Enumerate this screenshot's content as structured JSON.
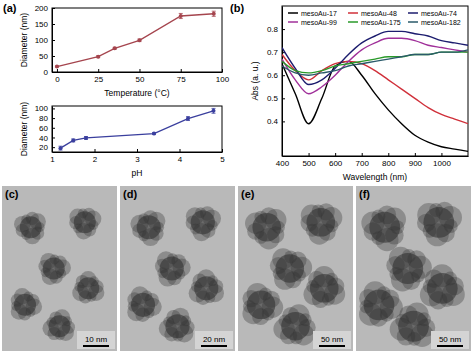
{
  "chart_data": [
    {
      "type": "line",
      "annotations": [
        "(a)"
      ],
      "x_label": "Temperature (°C)",
      "y_label": "Diameter (nm)",
      "x": [
        0,
        25,
        35,
        50,
        75,
        95
      ],
      "values": [
        17,
        48,
        74,
        99,
        175,
        182
      ],
      "errors": [
        2,
        3,
        3,
        4,
        8,
        8
      ],
      "xlim": [
        -3,
        100
      ],
      "ylim": [
        0,
        200
      ],
      "xticks": [
        0,
        25,
        50,
        75,
        100
      ],
      "yticks": [
        0,
        50,
        100,
        150,
        200
      ],
      "color": "#a5454e",
      "marker": "circle"
    },
    {
      "type": "line",
      "x_label": "pH",
      "y_label": "Diameter (nm)",
      "x": [
        1.2,
        1.5,
        1.8,
        3.4,
        4.2,
        4.8
      ],
      "values": [
        18,
        34,
        39,
        48,
        79,
        95
      ],
      "errors": [
        4,
        3,
        3,
        2,
        4,
        5
      ],
      "xlim": [
        1,
        5
      ],
      "ylim": [
        10,
        105
      ],
      "xticks": [
        1,
        2,
        3,
        4,
        5
      ],
      "yticks": [
        20,
        40,
        60,
        80,
        100
      ],
      "color": "#3a3f9e",
      "marker": "circle"
    },
    {
      "type": "line",
      "annotations": [
        "(b)"
      ],
      "x_label": "Wavelength (nm)",
      "y_label": "Abs (a. u.)",
      "x": [
        400,
        450,
        500,
        550,
        600,
        650,
        700,
        750,
        800,
        850,
        900,
        950,
        1000,
        1050,
        1100
      ],
      "series": [
        {
          "name": "mesoAu-17",
          "color": "#000000",
          "values": [
            0.65,
            0.52,
            0.39,
            0.5,
            0.64,
            0.66,
            0.6,
            0.52,
            0.45,
            0.39,
            0.34,
            0.31,
            0.29,
            0.28,
            0.27
          ]
        },
        {
          "name": "mesoAu-48",
          "color": "#d0303a",
          "values": [
            0.69,
            0.62,
            0.58,
            0.62,
            0.65,
            0.66,
            0.65,
            0.62,
            0.58,
            0.54,
            0.5,
            0.46,
            0.43,
            0.41,
            0.39
          ]
        },
        {
          "name": "mesoAu-74",
          "color": "#1c1c6e",
          "values": [
            0.72,
            0.63,
            0.56,
            0.58,
            0.63,
            0.69,
            0.74,
            0.77,
            0.79,
            0.79,
            0.78,
            0.77,
            0.75,
            0.74,
            0.73
          ]
        },
        {
          "name": "mesoAu-99",
          "color": "#a0309a",
          "values": [
            0.67,
            0.58,
            0.52,
            0.55,
            0.6,
            0.66,
            0.71,
            0.74,
            0.76,
            0.76,
            0.75,
            0.73,
            0.72,
            0.71,
            0.7
          ]
        },
        {
          "name": "mesoAu-175",
          "color": "#2a9a2a",
          "values": [
            0.66,
            0.62,
            0.61,
            0.62,
            0.64,
            0.65,
            0.66,
            0.67,
            0.68,
            0.68,
            0.69,
            0.69,
            0.7,
            0.7,
            0.7
          ]
        },
        {
          "name": "mesoAu-182",
          "color": "#2a5a6a",
          "values": [
            0.64,
            0.61,
            0.6,
            0.61,
            0.62,
            0.64,
            0.65,
            0.66,
            0.67,
            0.68,
            0.69,
            0.69,
            0.7,
            0.7,
            0.71
          ]
        }
      ],
      "xlim": [
        400,
        1100
      ],
      "ylim": [
        0.25,
        0.9
      ],
      "xticks": [
        400,
        500,
        600,
        700,
        800,
        900,
        1000
      ],
      "yticks": [
        0.4,
        0.5,
        0.6,
        0.7,
        0.8
      ],
      "legend": "top"
    }
  ],
  "images": [
    {
      "label": "(c)",
      "scale_bar": "10 nm"
    },
    {
      "label": "(d)",
      "scale_bar": "20 nm"
    },
    {
      "label": "(e)",
      "scale_bar": "50 nm"
    },
    {
      "label": "(f)",
      "scale_bar": "50 nm"
    }
  ]
}
